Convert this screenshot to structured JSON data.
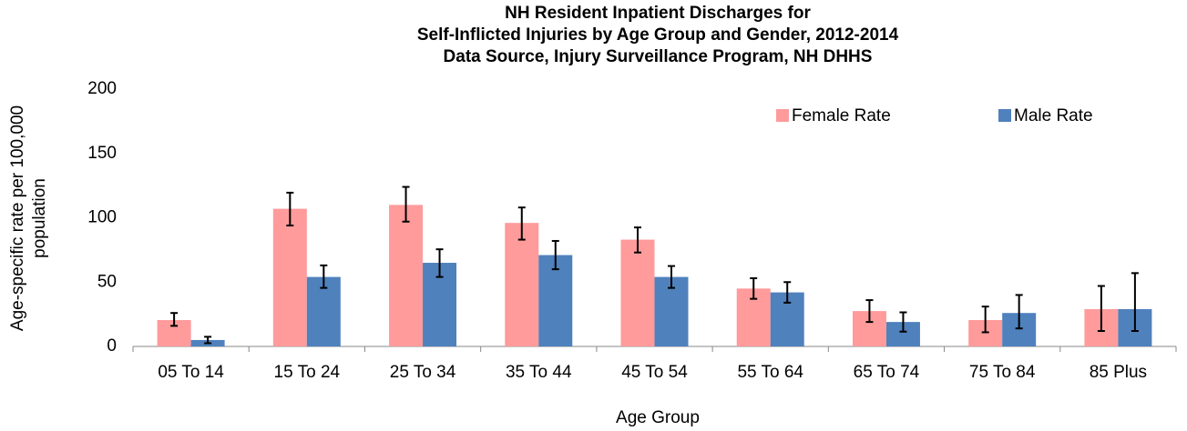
{
  "chart_data": {
    "type": "bar",
    "title": [
      "NH Resident Inpatient Discharges for",
      "Self-Inflicted Injuries by Age Group and Gender, 2012-2014",
      "Data Source, Injury Surveillance Program, NH DHHS"
    ],
    "x_label": "Age Group",
    "y_label": [
      "Age-specific rate per 100,000",
      "population"
    ],
    "categories": [
      "05 To 14",
      "15 To 24",
      "25 To 34",
      "35 To 44",
      "45 To 54",
      "55 To 64",
      "65 To 74",
      "75 To 84",
      "85 Plus"
    ],
    "series": [
      {
        "name": "Female Rate",
        "color": "#ff9b9b",
        "values": [
          20.5,
          107,
          110,
          96,
          83,
          45,
          27.5,
          20.5,
          29
        ],
        "err_minus": [
          4.5,
          13,
          13,
          13,
          10,
          8,
          8.5,
          9.5,
          17
        ],
        "err_plus": [
          5.5,
          12.5,
          14,
          12,
          9.5,
          8,
          8.5,
          10.5,
          18
        ]
      },
      {
        "name": "Male Rate",
        "color": "#4f81bd",
        "values": [
          5,
          54,
          65,
          71,
          54,
          42,
          19,
          26,
          29
        ],
        "err_minus": [
          2.5,
          8.5,
          11,
          11,
          8.5,
          8,
          7.5,
          12,
          17
        ],
        "err_plus": [
          2.5,
          9,
          10.5,
          11,
          8.5,
          8,
          7.5,
          14,
          28
        ]
      }
    ],
    "ylim": [
      0,
      200
    ],
    "yticks": [
      0,
      50,
      100,
      150,
      200
    ],
    "grid": false,
    "legend": "top-right"
  }
}
